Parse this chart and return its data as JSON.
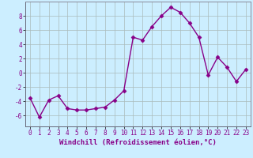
{
  "x": [
    0,
    1,
    2,
    3,
    4,
    5,
    6,
    7,
    8,
    9,
    10,
    11,
    12,
    13,
    14,
    15,
    16,
    17,
    18,
    19,
    20,
    21,
    22,
    23
  ],
  "y": [
    -3.5,
    -6.2,
    -3.8,
    -3.2,
    -5.0,
    -5.2,
    -5.2,
    -5.0,
    -4.8,
    -3.8,
    -2.5,
    5.0,
    4.6,
    6.5,
    8.0,
    9.2,
    8.5,
    7.0,
    5.0,
    -0.3,
    2.2,
    0.8,
    -1.2,
    0.5
  ],
  "line_color": "#880088",
  "marker": "D",
  "marker_size": 2.5,
  "linewidth": 1.0,
  "bg_color": "#cceeff",
  "grid_color": "#aabbbb",
  "xlabel": "Windchill (Refroidissement éolien,°C)",
  "ylim": [
    -7.5,
    10.0
  ],
  "xlim": [
    -0.5,
    23.5
  ],
  "yticks": [
    -6,
    -4,
    -2,
    0,
    2,
    4,
    6,
    8
  ],
  "xticks": [
    0,
    1,
    2,
    3,
    4,
    5,
    6,
    7,
    8,
    9,
    10,
    11,
    12,
    13,
    14,
    15,
    16,
    17,
    18,
    19,
    20,
    21,
    22,
    23
  ],
  "tick_fontsize": 5.5,
  "xlabel_fontsize": 6.5
}
